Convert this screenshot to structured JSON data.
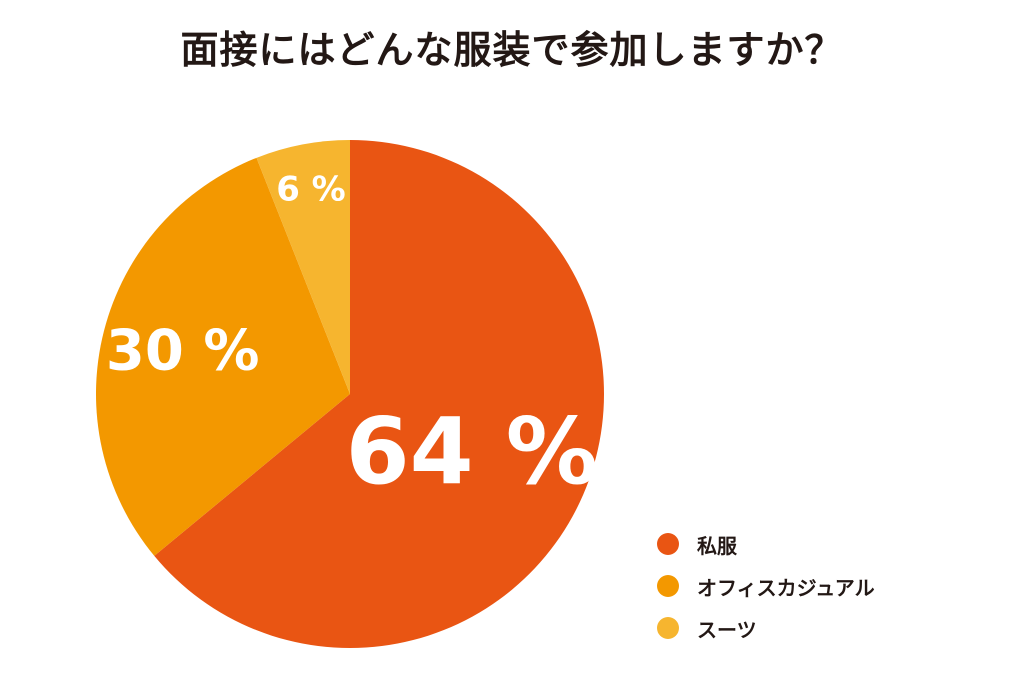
{
  "chart_data": {
    "type": "pie",
    "title": "面接にはどんな服装で参加しますか？",
    "categories": [
      "私服",
      "オフィスカジュアル",
      "スーツ"
    ],
    "values": [
      64,
      30,
      6
    ],
    "labels": [
      "64 %",
      "30 %",
      "6 %"
    ],
    "colors": [
      "#E95513",
      "#F39800",
      "#F6B52F"
    ],
    "legend_position": "bottom-right"
  }
}
